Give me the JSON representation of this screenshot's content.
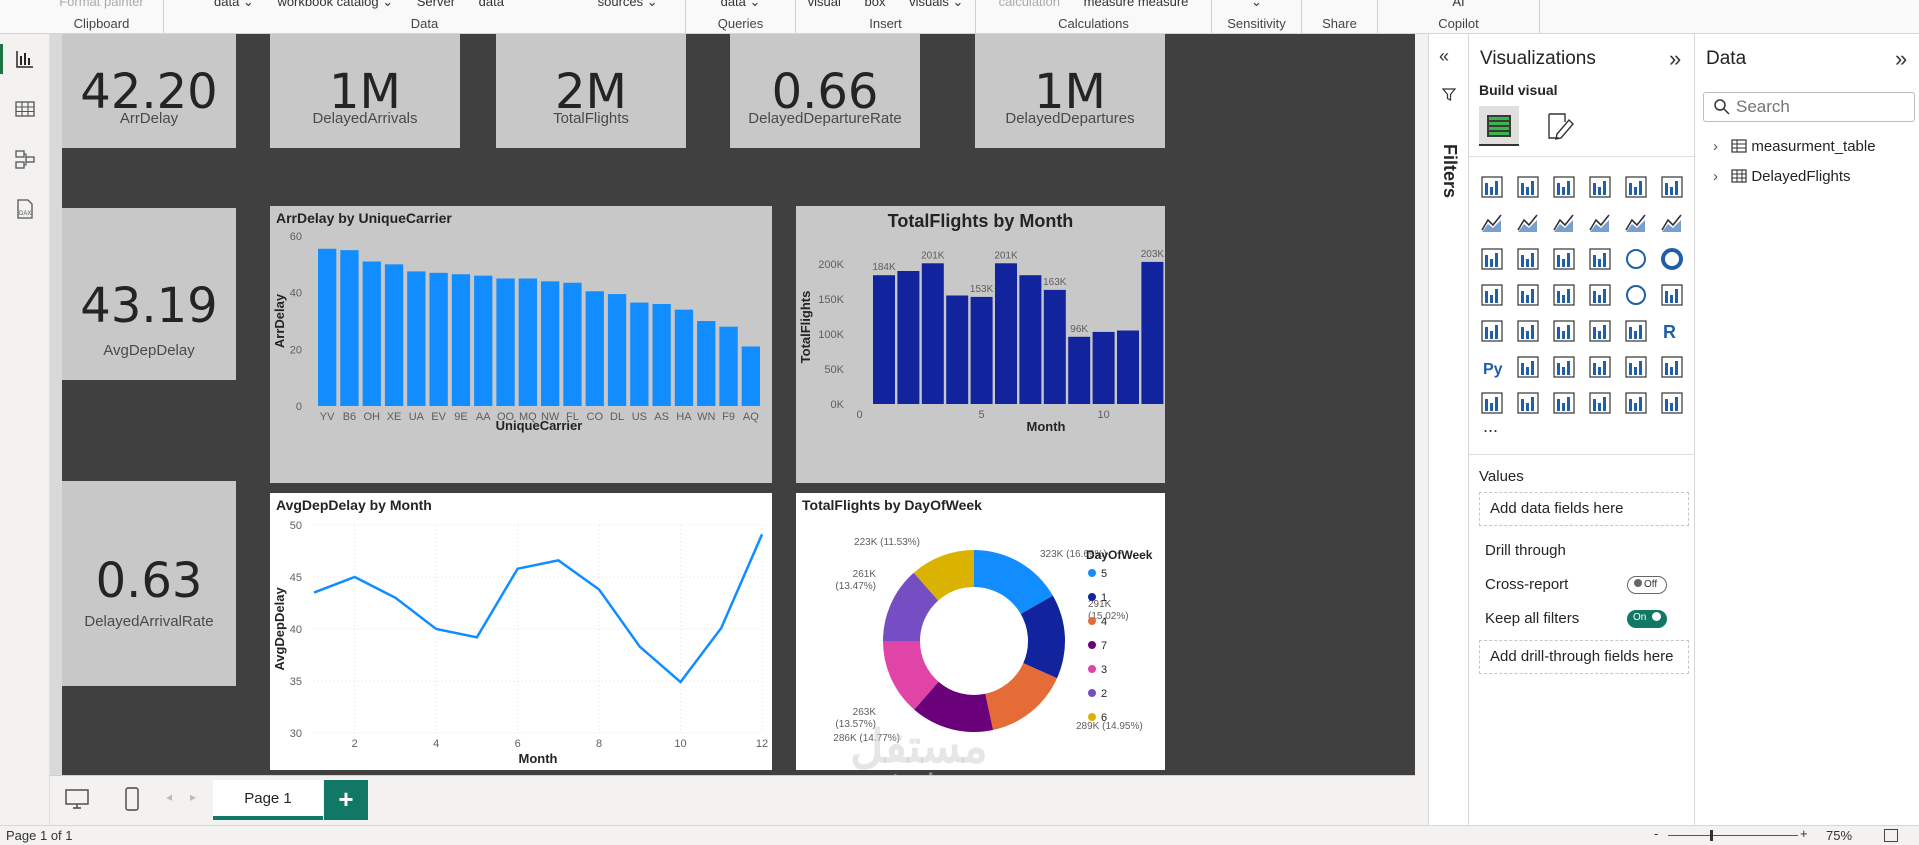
{
  "ribbon": {
    "groups": [
      {
        "label": "Clipboard",
        "items": [
          "Format painter"
        ]
      },
      {
        "label": "Data",
        "items": [
          "data ⌄",
          "workbook catalog ⌄",
          "Server",
          "data",
          "sources ⌄"
        ]
      },
      {
        "label": "Queries",
        "items": [
          "data ⌄"
        ]
      },
      {
        "label": "Insert",
        "items": [
          "visual",
          "box",
          "visuals ⌄"
        ]
      },
      {
        "label": "Calculations",
        "items": [
          "calculation",
          "measure measure"
        ]
      },
      {
        "label": "Sensitivity",
        "items": [
          "⌄"
        ]
      },
      {
        "label": "Share",
        "items": [
          ""
        ]
      },
      {
        "label": "Copilot",
        "items": [
          "AI"
        ]
      }
    ]
  },
  "kpis": [
    {
      "value": "42.20",
      "label": "ArrDelay"
    },
    {
      "value": "1M",
      "label": "DelayedArrivals"
    },
    {
      "value": "2M",
      "label": "TotalFlights"
    },
    {
      "value": "0.66",
      "label": "DelayedDepartureRate"
    },
    {
      "value": "1M",
      "label": "DelayedDepartures"
    },
    {
      "value": "43.19",
      "label": "AvgDepDelay"
    },
    {
      "value": "0.63",
      "label": "DelayedArrivalRate"
    }
  ],
  "chart_data": [
    {
      "type": "bar",
      "title": "ArrDelay by UniqueCarrier",
      "xlabel": "UniqueCarrier",
      "ylabel": "ArrDelay",
      "ylim": [
        0,
        60
      ],
      "yticks": [
        "0",
        "20",
        "40",
        "60"
      ],
      "categories": [
        "YV",
        "B6",
        "OH",
        "XE",
        "UA",
        "EV",
        "9E",
        "AA",
        "OO",
        "MQ",
        "NW",
        "FL",
        "CO",
        "DL",
        "US",
        "AS",
        "HA",
        "WN",
        "F9",
        "AQ"
      ],
      "values": [
        55.5,
        55,
        51,
        50,
        47.5,
        47,
        46.5,
        46,
        45,
        45,
        44,
        43.5,
        40.5,
        39.5,
        36.5,
        36,
        34,
        30,
        28,
        21
      ],
      "color": "#118dff",
      "grid": false
    },
    {
      "type": "bar",
      "title": "TotalFlights by Month",
      "xlabel": "Month",
      "ylabel": "TotalFlights",
      "ylim": [
        0,
        220000
      ],
      "yticks": [
        "0K",
        "50K",
        "100K",
        "150K",
        "200K"
      ],
      "xticks": [
        "0",
        "5",
        "10"
      ],
      "categories": [
        1,
        2,
        3,
        4,
        5,
        6,
        7,
        8,
        9,
        10,
        11,
        12
      ],
      "values": [
        184000,
        190000,
        201000,
        155000,
        153000,
        201000,
        184000,
        163000,
        96000,
        103000,
        105000,
        203000
      ],
      "data_labels": [
        "184K",
        "",
        "201K",
        "",
        "153K",
        "201K",
        "",
        "163K",
        "96K",
        "",
        "",
        "203K"
      ],
      "color": "#12239e",
      "grid": false
    },
    {
      "type": "line",
      "title": "AvgDepDelay by Month",
      "xlabel": "Month",
      "ylabel": "AvgDepDelay",
      "ylim": [
        30,
        50
      ],
      "xlim": [
        1,
        12
      ],
      "yticks": [
        "30",
        "35",
        "40",
        "45",
        "50"
      ],
      "xticks": [
        "2",
        "4",
        "6",
        "8",
        "10",
        "12"
      ],
      "x": [
        1,
        2,
        3,
        4,
        5,
        6,
        7,
        8,
        9,
        10,
        11,
        12
      ],
      "values": [
        43.5,
        45,
        43,
        40,
        39.2,
        45.8,
        46.6,
        43.8,
        38.3,
        34.9,
        40.1,
        49.1
      ],
      "color": "#118dff",
      "grid": true
    },
    {
      "type": "pie",
      "title": "TotalFlights by DayOfWeek",
      "legend_title": "DayOfWeek",
      "legend": "right",
      "slices": [
        {
          "name": "5",
          "value": 323,
          "label": "323K (16.69%)",
          "color": "#118dff"
        },
        {
          "name": "1",
          "value": 291,
          "label": "291K (15.02%)",
          "color": "#12239e"
        },
        {
          "name": "4",
          "value": 289,
          "label": "289K (14.95%)",
          "color": "#e66c37"
        },
        {
          "name": "7",
          "value": 286,
          "label": "286K (14.77%)",
          "color": "#6b007b"
        },
        {
          "name": "3",
          "value": 263,
          "label": "263K (13.57%)",
          "color": "#e044a7"
        },
        {
          "name": "2",
          "value": 261,
          "label": "261K (13.47%)",
          "color": "#744ec2"
        },
        {
          "name": "6",
          "value": 223,
          "label": "223K (11.53%)",
          "color": "#d9b300"
        }
      ]
    }
  ],
  "bottom": {
    "page_tab": "Page 1",
    "add": "+",
    "status": "Page 1 of 1",
    "zoom": "75%"
  },
  "filters": {
    "label": "Filters"
  },
  "visualizations": {
    "title": "Visualizations",
    "build": "Build visual",
    "more": "...",
    "values_label": "Values",
    "values_placeholder": "Add data fields here",
    "drill_label": "Drill through",
    "cross_report": "Cross-report",
    "cross_state": "Off",
    "keep_filters": "Keep all filters",
    "keep_state": "On",
    "drill_placeholder": "Add drill-through fields here"
  },
  "data_pane": {
    "title": "Data",
    "search_placeholder": "Search",
    "tables": [
      "measurment_table",
      "DelayedFlights"
    ]
  },
  "watermark": {
    "line1": "مستقل",
    "line2": "mostaql.com"
  }
}
